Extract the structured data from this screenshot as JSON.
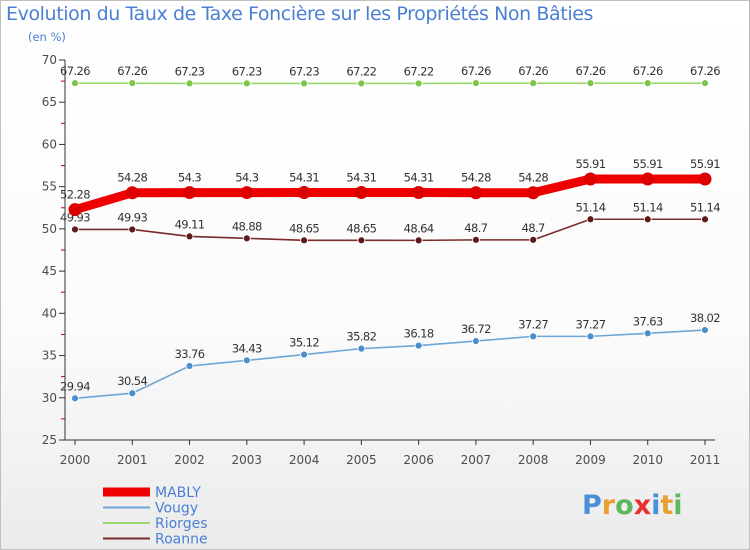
{
  "chart_data": {
    "type": "line",
    "title": "Evolution du Taux de Taxe Foncière sur les Propriétés Non Bâties",
    "ylabel": "(en %)",
    "xlabel": "",
    "categories": [
      "2000",
      "2001",
      "2002",
      "2003",
      "2004",
      "2005",
      "2006",
      "2007",
      "2008",
      "2009",
      "2010",
      "2011"
    ],
    "ylim": [
      25,
      70
    ],
    "yticks": [
      25,
      30,
      35,
      40,
      45,
      50,
      55,
      60,
      65,
      70
    ],
    "series": [
      {
        "name": "MABLY",
        "color": "#ee0000",
        "point_color": "#dd0000",
        "values": [
          52.28,
          54.28,
          54.3,
          54.3,
          54.31,
          54.31,
          54.31,
          54.28,
          54.28,
          55.91,
          55.91,
          55.91
        ],
        "labels": [
          "52.28",
          "54.28",
          "54.3",
          "54.3",
          "54.31",
          "54.31",
          "54.31",
          "54.28",
          "54.28",
          "55.91",
          "55.91",
          "55.91"
        ]
      },
      {
        "name": "Vougy",
        "color": "#6ea6d6",
        "point_color": "#4a8fcc",
        "values": [
          29.94,
          30.54,
          33.76,
          34.43,
          35.12,
          35.82,
          36.18,
          36.72,
          37.27,
          37.27,
          37.63,
          38.02
        ],
        "labels": [
          "29.94",
          "30.54",
          "33.76",
          "34.43",
          "35.12",
          "35.82",
          "36.18",
          "36.72",
          "37.27",
          "37.27",
          "37.63",
          "38.02"
        ]
      },
      {
        "name": "Riorges",
        "color": "#9ad66e",
        "point_color": "#7cc44a",
        "values": [
          67.26,
          67.26,
          67.23,
          67.23,
          67.23,
          67.22,
          67.22,
          67.26,
          67.26,
          67.26,
          67.26,
          67.26
        ],
        "labels": [
          "67.26",
          "67.26",
          "67.23",
          "67.23",
          "67.23",
          "67.22",
          "67.22",
          "67.26",
          "67.26",
          "67.26",
          "67.26",
          "67.26"
        ]
      },
      {
        "name": "Roanne",
        "color": "#7a2a2a",
        "point_color": "#5e1a1a",
        "values": [
          49.93,
          49.93,
          49.11,
          48.88,
          48.65,
          48.65,
          48.64,
          48.7,
          48.7,
          51.14,
          51.14,
          51.14
        ],
        "labels": [
          "49.93",
          "49.93",
          "49.11",
          "48.88",
          "48.65",
          "48.65",
          "48.64",
          "48.7",
          "48.7",
          "51.14",
          "51.14",
          "51.14"
        ]
      }
    ],
    "legend": "bottom-left",
    "grid": false
  },
  "brand": {
    "letters": [
      "P",
      "r",
      "o",
      "x",
      "i",
      "t",
      "i"
    ],
    "colors": [
      "#4a90d9",
      "#e8a030",
      "#5cb85c",
      "#e83030",
      "#4a90d9",
      "#e8a030",
      "#5cb85c"
    ]
  }
}
